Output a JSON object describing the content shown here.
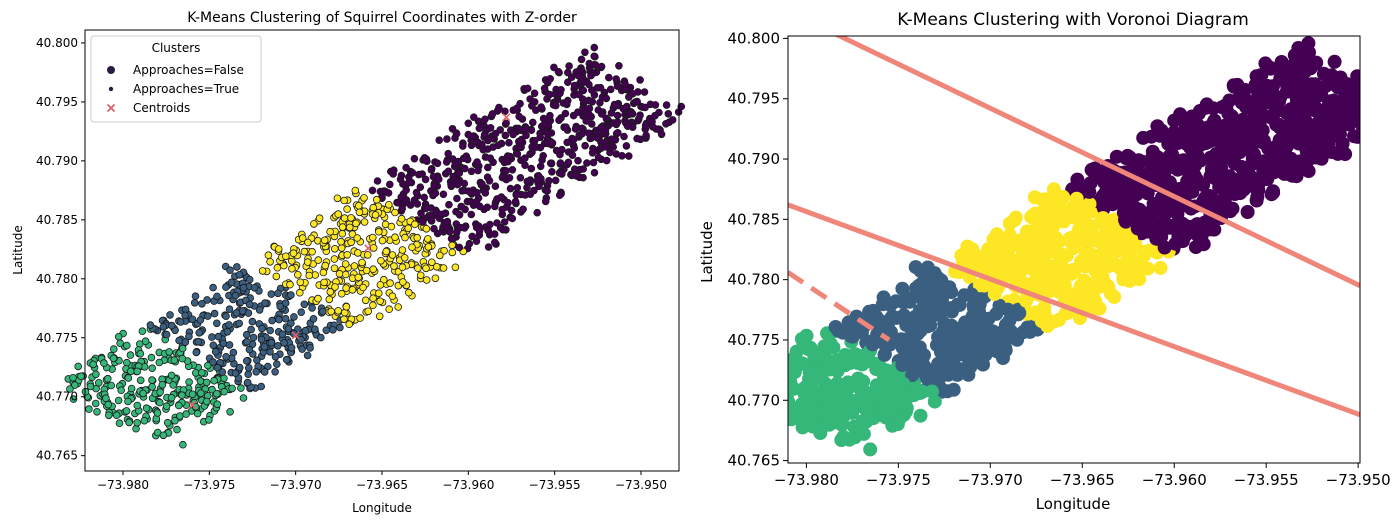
{
  "chart_data": [
    {
      "type": "scatter",
      "title": "K-Means Clustering of Squirrel Coordinates with Z-order",
      "xlabel": "Longitude",
      "ylabel": "Latitude",
      "xlim": [
        -73.9822,
        -73.9478
      ],
      "ylim": [
        40.7637,
        40.8011
      ],
      "xticks": [
        -73.98,
        -73.975,
        -73.97,
        -73.965,
        -73.96,
        -73.955,
        -73.95
      ],
      "xtick_labels": [
        "−73.980",
        "−73.975",
        "−73.970",
        "−73.965",
        "−73.960",
        "−73.955",
        "−73.950"
      ],
      "yticks": [
        40.765,
        40.77,
        40.775,
        40.78,
        40.785,
        40.79,
        40.795,
        40.8
      ],
      "ytick_labels": [
        "40.765",
        "40.770",
        "40.775",
        "40.780",
        "40.785",
        "40.790",
        "40.795",
        "40.800"
      ],
      "grid": false,
      "legend": {
        "title": "Clusters",
        "placement": "top-left",
        "entries": [
          "Approaches=False",
          "Approaches=True",
          "Centroids"
        ]
      },
      "clusters": [
        {
          "color": "#440154",
          "centroid": [
            -73.9578,
            40.7937
          ]
        },
        {
          "color": "#fde725",
          "centroid": [
            -73.9658,
            40.7826
          ]
        },
        {
          "color": "#3b5f80",
          "centroid": [
            -73.97,
            40.7752
          ]
        },
        {
          "color": "#35b779",
          "centroid": [
            -73.976,
            40.7693
          ]
        }
      ],
      "centroid_color": "#e0606a"
    },
    {
      "type": "scatter",
      "title": "K-Means Clustering with Voronoi Diagram",
      "xlabel": "Longitude",
      "ylabel": "Latitude",
      "xlim": [
        -73.981,
        -73.9499
      ],
      "ylim": [
        40.7648,
        40.8002
      ],
      "xticks": [
        -73.98,
        -73.975,
        -73.97,
        -73.965,
        -73.96,
        -73.955,
        -73.95
      ],
      "xtick_labels": [
        "−73.980",
        "−73.975",
        "−73.970",
        "−73.965",
        "−73.960",
        "−73.955",
        "−73.950"
      ],
      "yticks": [
        40.765,
        40.77,
        40.775,
        40.78,
        40.785,
        40.79,
        40.795,
        40.8
      ],
      "ytick_labels": [
        "40.765",
        "40.770",
        "40.775",
        "40.780",
        "40.785",
        "40.790",
        "40.795",
        "40.800"
      ],
      "grid": false,
      "cluster_colors": [
        "#440154",
        "#fde725",
        "#3b5f80",
        "#35b779"
      ],
      "voronoi_color": "#ef8679",
      "voronoi_edges": [
        {
          "p1": [
            -73.981,
            40.80226
          ],
          "p2": [
            -73.9499,
            40.7795
          ],
          "style": "solid"
        },
        {
          "p1": [
            -73.981,
            40.7862
          ],
          "p2": [
            -73.9499,
            40.7688
          ],
          "style": "solid"
        },
        {
          "p1": [
            -73.981,
            40.7806
          ],
          "p2": [
            -73.9755,
            40.775
          ],
          "style": "dashed"
        }
      ]
    }
  ]
}
